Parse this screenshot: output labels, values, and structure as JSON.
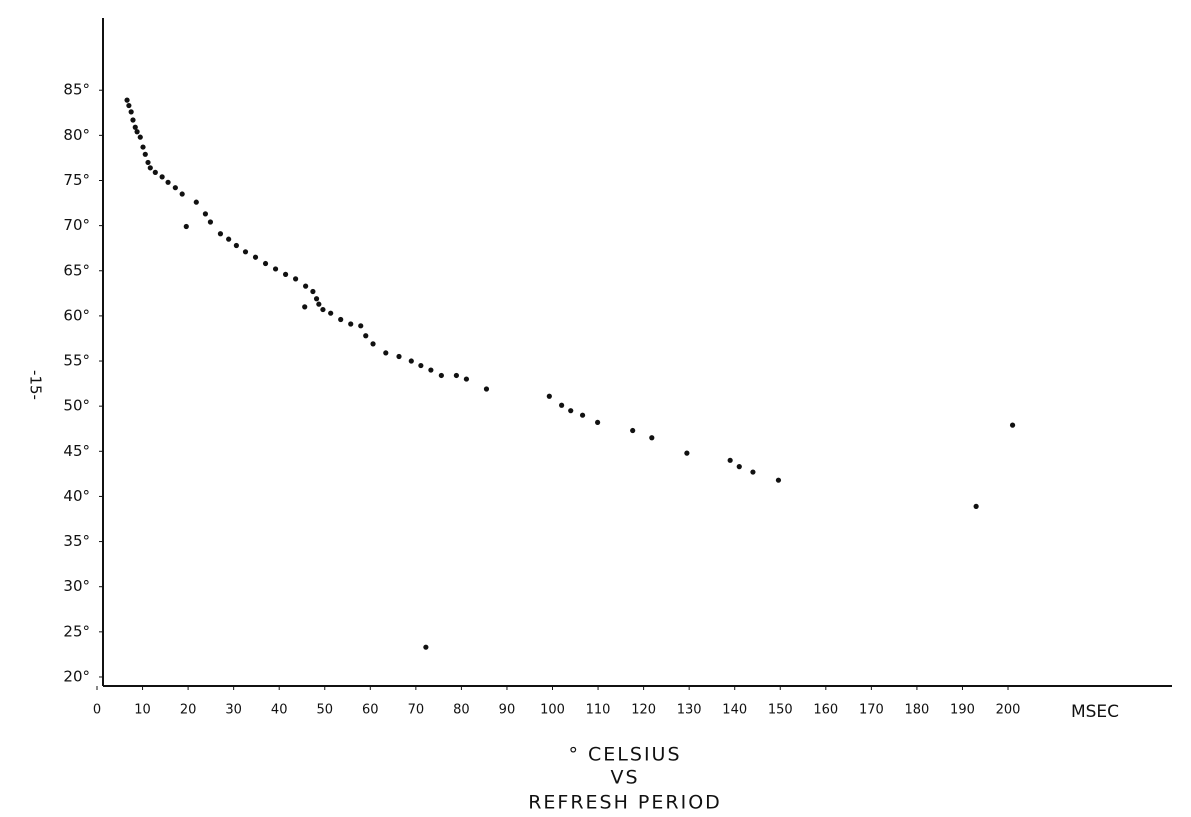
{
  "chart_data": {
    "type": "scatter",
    "title_lines": [
      "° CELSIUS",
      "VS",
      "REFRESH PERIOD"
    ],
    "page_number": "-15-",
    "x_label": "MSEC",
    "color": "#111111",
    "grid": false,
    "xlim": [
      0,
      236
    ],
    "ylim": [
      19,
      93
    ],
    "xticks": [
      0,
      10,
      20,
      30,
      40,
      50,
      60,
      70,
      80,
      90,
      100,
      110,
      120,
      130,
      140,
      150,
      160,
      170,
      180,
      190,
      200
    ],
    "yticks": [
      {
        "value": 20,
        "label": "20°"
      },
      {
        "value": 25,
        "label": "25°"
      },
      {
        "value": 30,
        "label": "30°"
      },
      {
        "value": 35,
        "label": "35°"
      },
      {
        "value": 40,
        "label": "40°"
      },
      {
        "value": 45,
        "label": "45°"
      },
      {
        "value": 50,
        "label": "50°"
      },
      {
        "value": 55,
        "label": "55°"
      },
      {
        "value": 60,
        "label": "60°"
      },
      {
        "value": 65,
        "label": "65°"
      },
      {
        "value": 70,
        "label": "70°"
      },
      {
        "value": 75,
        "label": "75°"
      },
      {
        "value": 80,
        "label": "80°"
      },
      {
        "value": 85,
        "label": "85°"
      }
    ],
    "x": [
      6.6,
      7.0,
      7.5,
      7.9,
      8.4,
      8.8,
      9.5,
      10.1,
      10.6,
      11.2,
      11.7,
      12.8,
      14.3,
      15.6,
      17.2,
      18.7,
      19.6,
      21.8,
      23.8,
      24.9,
      27.1,
      28.9,
      30.6,
      32.6,
      34.8,
      37.0,
      39.2,
      41.4,
      43.6,
      45.8,
      45.6,
      47.4,
      48.2,
      48.7,
      49.6,
      51.3,
      53.5,
      55.7,
      57.9,
      59.0,
      60.6,
      63.4,
      66.3,
      69.0,
      71.1,
      73.3,
      75.6,
      78.9,
      81.1,
      85.5,
      99.3,
      102.0,
      104.0,
      106.6,
      109.9,
      117.6,
      121.8,
      129.5,
      139.0,
      141.0,
      144.0,
      149.6,
      193.0,
      201.0,
      72.2
    ],
    "values": [
      83.9,
      83.3,
      82.6,
      81.7,
      80.9,
      80.4,
      79.8,
      78.7,
      77.9,
      77.0,
      76.4,
      75.9,
      75.4,
      74.8,
      74.2,
      73.5,
      69.9,
      72.6,
      71.3,
      70.4,
      69.1,
      68.5,
      67.8,
      67.1,
      66.5,
      65.8,
      65.2,
      64.6,
      64.1,
      63.3,
      61.0,
      62.7,
      61.9,
      61.3,
      60.7,
      60.3,
      59.6,
      59.1,
      58.9,
      57.8,
      56.9,
      55.9,
      55.5,
      55.0,
      54.5,
      54.0,
      53.4,
      53.4,
      53.0,
      51.9,
      51.1,
      50.1,
      49.5,
      49.0,
      48.2,
      47.3,
      46.5,
      44.8,
      44.0,
      43.3,
      42.7,
      41.8,
      38.9,
      47.9,
      23.3
    ]
  }
}
